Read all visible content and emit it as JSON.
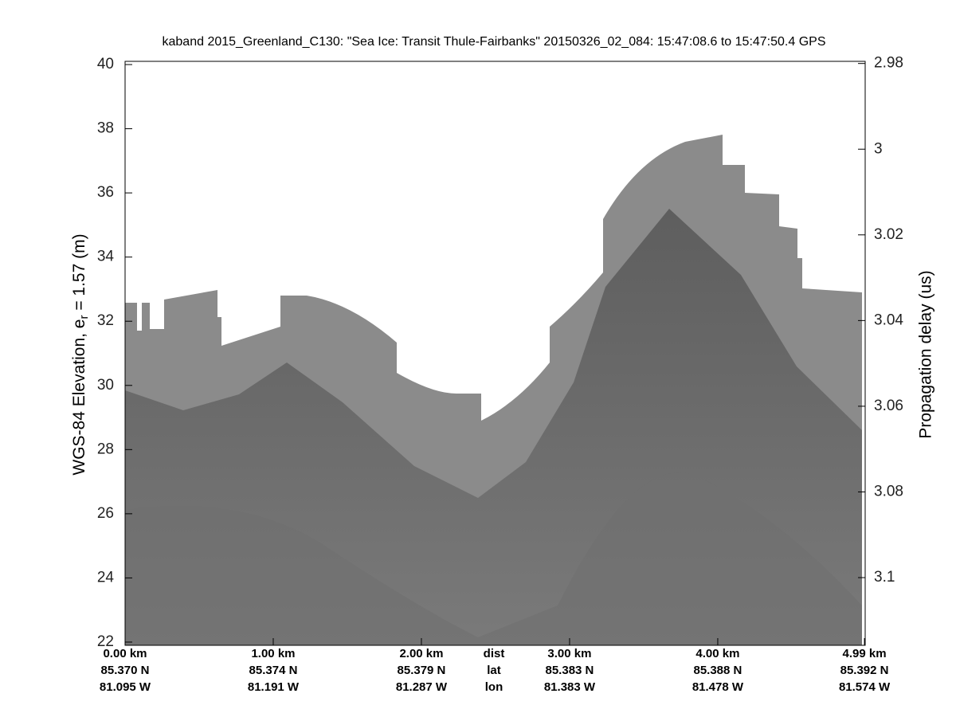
{
  "chart_data": {
    "type": "echogram",
    "title": "kaband 2015_Greenland_C130: \"Sea Ice: Transit Thule-Fairbanks\"  20150326_02_084: 15:47:08.6 to 15:47:50.4 GPS",
    "ylabel": {
      "main": "WGS-84 Elevation, e",
      "sub": "r",
      "rest": " = 1.57 (m)"
    },
    "y2label": "Propagation delay (us)",
    "ylim": [
      21.9,
      40.1
    ],
    "yticks": [
      22,
      24,
      26,
      28,
      30,
      32,
      34,
      36,
      38,
      40
    ],
    "y2lim": [
      3.1158,
      2.9795
    ],
    "y2ticks": [
      2.98,
      3,
      3.02,
      3.04,
      3.06,
      3.08,
      3.1
    ],
    "xlim": [
      0,
      4.995
    ],
    "xticks": [
      {
        "value": 0,
        "label": "0.00 km"
      },
      {
        "value": 1,
        "label": "1.00 km"
      },
      {
        "value": 2,
        "label": "2.00 km"
      },
      {
        "value": 3,
        "label": "3.00 km"
      },
      {
        "value": 4,
        "label": "4.00 km"
      },
      {
        "value": 4.99,
        "label": "4.99 km"
      }
    ],
    "lat_labels": [
      "85.370 N",
      "85.374 N",
      "85.379 N",
      "85.383 N",
      "85.388 N",
      "85.392 N"
    ],
    "lon_labels": [
      "81.095 W",
      "81.191 W",
      "81.287 W",
      "81.383 W",
      "81.478 W",
      "81.574 W"
    ],
    "row_labels": [
      "dist",
      "lat",
      "lon"
    ]
  }
}
